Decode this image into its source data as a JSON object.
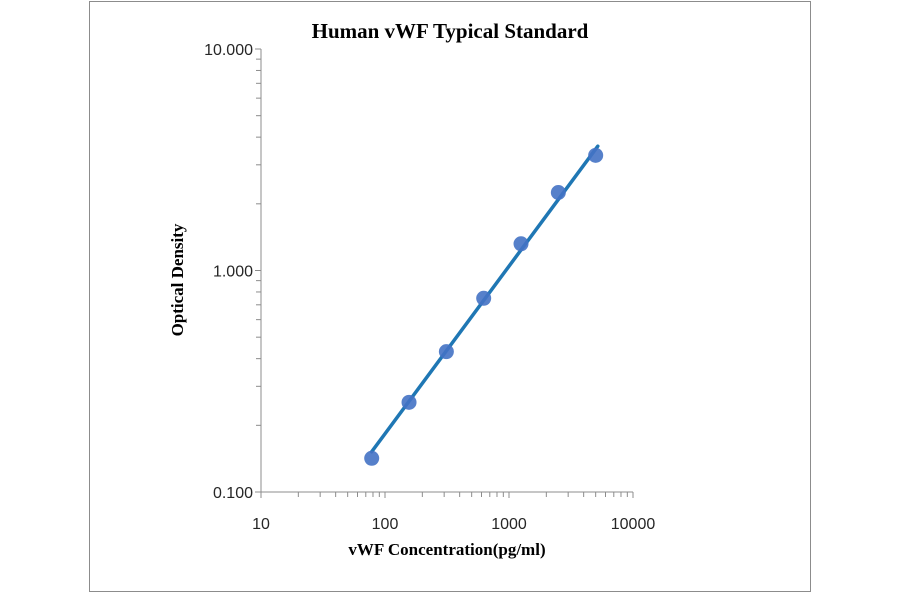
{
  "chart_data": {
    "type": "scatter",
    "title": "Human vWF Typical Standard",
    "xlabel": "vWF Concentration(pg/ml)",
    "ylabel": "Optical Density",
    "xscale": "log",
    "yscale": "log",
    "xlim": [
      10,
      10000
    ],
    "ylim": [
      0.1,
      10
    ],
    "xticks": [
      10,
      100,
      1000,
      10000
    ],
    "xtick_labels": [
      "10",
      "100",
      "1000",
      "10000"
    ],
    "yticks": [
      0.1,
      1,
      10
    ],
    "ytick_labels": [
      "0.100",
      "1.000",
      "10.000"
    ],
    "grid": false,
    "points": {
      "x": [
        78.125,
        156.25,
        312.5,
        625,
        1250,
        2500,
        5000
      ],
      "y": [
        0.142,
        0.254,
        0.43,
        0.749,
        1.32,
        2.25,
        3.31
      ]
    },
    "fit_line": {
      "x": [
        78.125,
        5200
      ],
      "y": [
        0.152,
        3.64
      ]
    },
    "colors": {
      "points": "#4472c4",
      "line": "#1f77b4"
    }
  }
}
